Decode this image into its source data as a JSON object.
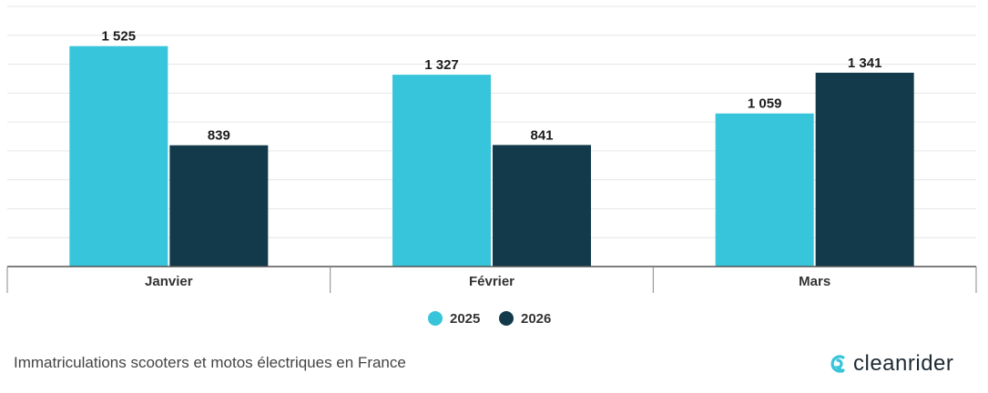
{
  "chart_data": {
    "type": "bar",
    "categories": [
      "Janvier",
      "Février",
      "Mars"
    ],
    "series": [
      {
        "name": "2025",
        "color": "#36c5da",
        "values": [
          1525,
          1327,
          1059
        ],
        "labels": [
          "1 525",
          "1 327",
          "1 059"
        ]
      },
      {
        "name": "2026",
        "color": "#123a4b",
        "values": [
          839,
          841,
          1341
        ],
        "labels": [
          "839",
          "841",
          "1 341"
        ]
      }
    ],
    "ylim": [
      0,
      1800
    ],
    "grid": true,
    "legend": "bottom-center",
    "xlabel": "",
    "ylabel": ""
  },
  "caption": "Immatriculations scooters et motos électriques en France",
  "brand": {
    "name": "cleanrider",
    "icon": "cleanrider-logo-icon",
    "color": "#36c5da"
  }
}
